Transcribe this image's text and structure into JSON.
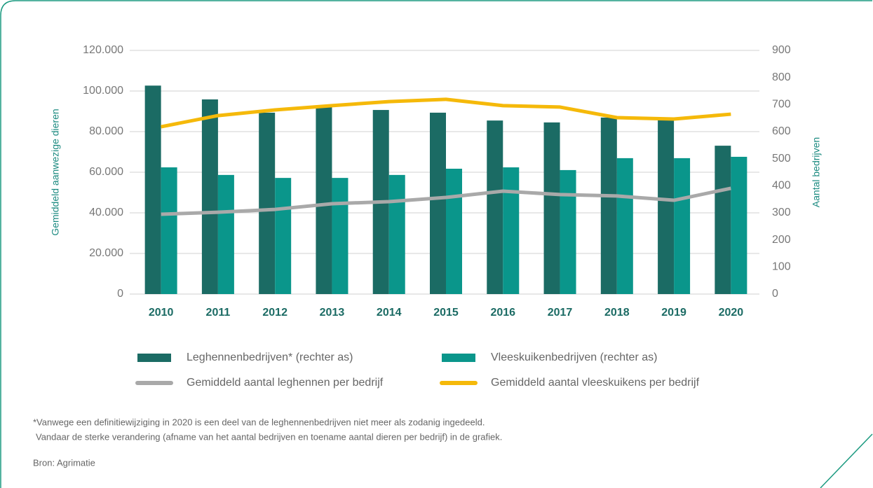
{
  "chart_data": {
    "type": "bar-line",
    "categories": [
      "2010",
      "2011",
      "2012",
      "2013",
      "2014",
      "2015",
      "2016",
      "2017",
      "2018",
      "2019",
      "2020"
    ],
    "series": [
      {
        "name": "Leghennenbedrijven* (rechter as)",
        "type": "bar",
        "axis": "y2",
        "color": "#1b6b64",
        "values": [
          770,
          719,
          670,
          693,
          680,
          670,
          641,
          634,
          652,
          644,
          548
        ]
      },
      {
        "name": "Vleeskuikenbedrijven (rechter as)",
        "type": "bar",
        "axis": "y2",
        "color": "#0a968b",
        "values": [
          468,
          440,
          429,
          429,
          440,
          463,
          468,
          458,
          502,
          502,
          507
        ]
      },
      {
        "name": "Gemiddeld aantal leghennen per bedrijf",
        "type": "line",
        "axis": "y",
        "color": "#a9a9a9",
        "values": [
          39300,
          40300,
          41700,
          44500,
          45500,
          47600,
          50700,
          49000,
          48300,
          46200,
          52100
        ]
      },
      {
        "name": "Gemiddeld aantal vleeskuikens per bedrijf",
        "type": "line",
        "axis": "y",
        "color": "#f5b90a",
        "values": [
          82400,
          87900,
          90700,
          92800,
          94800,
          95900,
          92800,
          92100,
          86900,
          86200,
          88600
        ]
      }
    ],
    "ylabel": "Gemiddeld aanwezige dieren",
    "y2label": "Aantal bedrijven",
    "ylim": [
      0,
      120000
    ],
    "yticks": [
      0,
      {
        "value": 20000,
        "label": "20.000"
      },
      {
        "value": 40000,
        "label": "40.000"
      },
      {
        "value": 60000,
        "label": "60.000"
      },
      {
        "value": 80000,
        "label": "80.000"
      },
      {
        "value": 100000,
        "label": "100.000"
      },
      {
        "value": 120000,
        "label": "120.000"
      }
    ],
    "y2lim": [
      0,
      900
    ],
    "y2ticks": [
      0,
      100,
      200,
      300,
      400,
      500,
      600,
      700,
      800,
      900
    ],
    "grid": true,
    "legend": "bottom",
    "notes": [
      "*Vanwege een definitiewijziging in 2020 is een deel van de leghennenbedrijven niet meer als zodanig ingedeeld.",
      "Vandaar de sterke verandering (afname van het aantal bedrijven en toename aantal dieren per bedrijf) in de grafiek."
    ],
    "source": "Bron: Agrimatie"
  }
}
